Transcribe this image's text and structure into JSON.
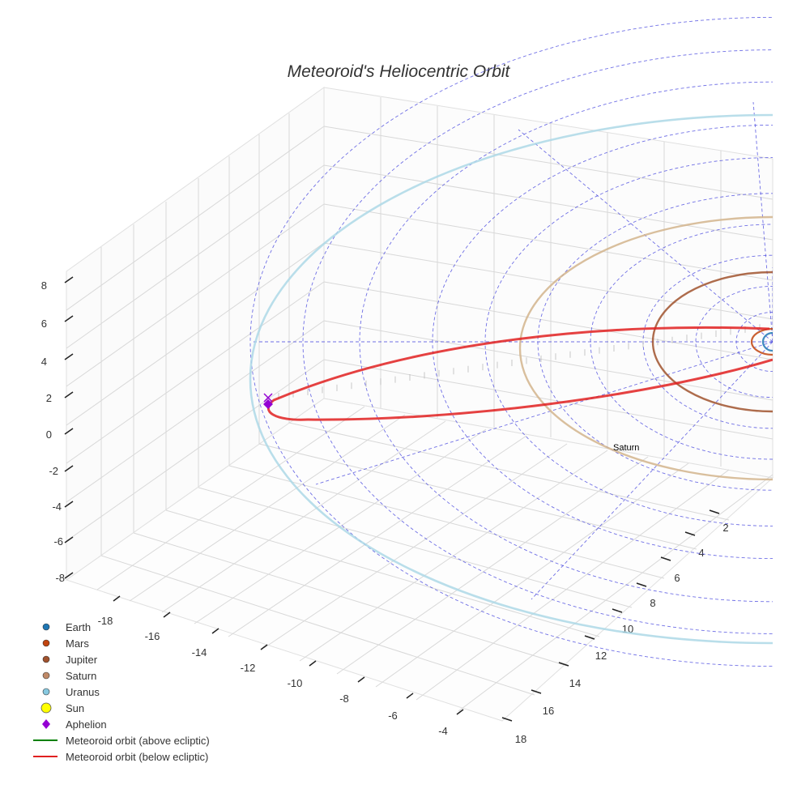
{
  "chart_data": {
    "type": "scatter3d",
    "title": "Meteoroid's Heliocentric Orbit",
    "axes": {
      "x": {
        "ticks": [
          -18,
          -16,
          -14,
          -12,
          -10,
          -8,
          -6,
          -4
        ]
      },
      "y": {
        "ticks": [
          2,
          4,
          6,
          8,
          10,
          12,
          14,
          16,
          18
        ]
      },
      "z": {
        "ticks": [
          8,
          6,
          4,
          2,
          0,
          -2,
          -4,
          -6,
          -8
        ]
      }
    },
    "grid": true,
    "legend_position": "bottom-left",
    "legend": [
      {
        "label": "Earth",
        "marker": "circle",
        "color": "#1f77b4"
      },
      {
        "label": "Mars",
        "marker": "circle",
        "color": "#c1440e"
      },
      {
        "label": "Jupiter",
        "marker": "circle",
        "color": "#a0522d"
      },
      {
        "label": "Saturn",
        "marker": "circle",
        "color": "#c08a68"
      },
      {
        "label": "Uranus",
        "marker": "circle",
        "color": "#87c9e0"
      },
      {
        "label": "Sun",
        "marker": "circle-large",
        "color": "#ffff00"
      },
      {
        "label": "Aphelion",
        "marker": "diamond",
        "color": "#9400d3"
      },
      {
        "label": "Meteoroid orbit (above ecliptic)",
        "marker": "line",
        "color": "#008000"
      },
      {
        "label": "Meteoroid orbit (below ecliptic)",
        "marker": "line",
        "color": "#e02020"
      }
    ],
    "orbits": [
      {
        "name": "Earth",
        "color": "#1f77b4"
      },
      {
        "name": "Mars",
        "color": "#c1440e"
      },
      {
        "name": "Jupiter",
        "color": "#a0522d"
      },
      {
        "name": "Saturn",
        "color": "#d2b48c"
      },
      {
        "name": "Uranus",
        "color": "#add8e6"
      }
    ],
    "annotations": [
      {
        "text": "Saturn"
      }
    ],
    "aphelion_marker_color": "#9400d3",
    "meteoroid_orbit_color": "#e02020",
    "ecliptic_grid_color": "#4040dd"
  }
}
